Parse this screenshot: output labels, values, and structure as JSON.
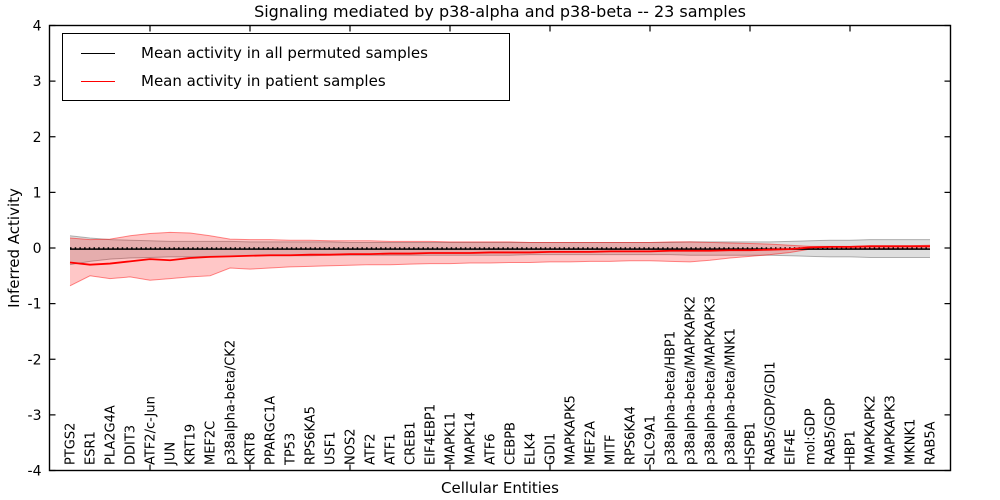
{
  "title": "Signaling mediated by p38-alpha and p38-beta -- 23 samples",
  "axes": {
    "x_label": "Cellular Entities",
    "y_label": "Inferred Activity",
    "y_tick_labels": [
      "4",
      "3",
      "2",
      "1",
      "0",
      "-1",
      "-2",
      "-3",
      "-4"
    ],
    "y_tick_values": [
      4,
      3,
      2,
      1,
      0,
      -1,
      -2,
      -3,
      -4
    ],
    "ylim": [
      -4,
      4
    ]
  },
  "legend": {
    "items": [
      {
        "label": "Mean activity in all permuted samples",
        "color": "#000000"
      },
      {
        "label": "Mean activity in patient samples",
        "color": "#ff0000"
      }
    ]
  },
  "colors": {
    "permuted_line": "#000000",
    "patient_line": "#ff0000",
    "permuted_band_fill": "rgba(0,0,0,0.13)",
    "permuted_band_edge": "rgba(0,0,0,0.28)",
    "patient_band_fill": "rgba(255,0,0,0.22)",
    "patient_band_edge": "rgba(255,0,0,0.45)",
    "spine": "#000000"
  },
  "chart_data": {
    "type": "line",
    "title": "Signaling mediated by p38-alpha and p38-beta -- 23 samples",
    "xlabel": "Cellular Entities",
    "ylabel": "Inferred Activity",
    "ylim": [
      -4,
      4
    ],
    "grid": false,
    "legend_position": "upper left",
    "categories": [
      "PTGS2",
      "ESR1",
      "PLA2G4A",
      "DDIT3",
      "ATF2/c-Jun",
      "JUN",
      "KRT19",
      "MEF2C",
      "p38alpha-beta/CK2",
      "KRT8",
      "PPARGC1A",
      "TP53",
      "RPS6KA5",
      "USF1",
      "NOS2",
      "ATF2",
      "ATF1",
      "CREB1",
      "EIF4EBP1",
      "MAPK11",
      "MAPK14",
      "ATF6",
      "CEBPB",
      "ELK4",
      "GDI1",
      "MAPKAPK5",
      "MEF2A",
      "MITF",
      "RPS6KA4",
      "SLC9A1",
      "p38alpha-beta/HBP1",
      "p38alpha-beta/MAPKAPK2",
      "p38alpha-beta/MAPKAPK3",
      "p38alpha-beta/MNK1",
      "HSPB1",
      "RAB5/GDP/GDI1",
      "EIF4E",
      "mol:GDP",
      "RAB5/GDP",
      "HBP1",
      "MAPKAPK2",
      "MAPKAPK3",
      "MKNK1",
      "RAB5A"
    ],
    "series": [
      {
        "name": "Mean activity in all permuted samples",
        "color": "#000000",
        "style": "solid",
        "values": [
          -0.02,
          -0.02,
          -0.02,
          -0.02,
          -0.02,
          -0.02,
          -0.02,
          -0.02,
          -0.02,
          -0.02,
          -0.02,
          -0.02,
          -0.02,
          -0.02,
          -0.02,
          -0.02,
          -0.02,
          -0.02,
          -0.02,
          -0.02,
          -0.02,
          -0.02,
          -0.02,
          -0.02,
          -0.02,
          -0.02,
          -0.02,
          -0.02,
          -0.02,
          -0.02,
          -0.02,
          -0.02,
          -0.02,
          -0.02,
          -0.02,
          -0.02,
          -0.02,
          -0.02,
          -0.02,
          -0.02,
          -0.02,
          -0.02,
          -0.02,
          -0.02
        ]
      },
      {
        "name": "Permuted zero reference (dotted)",
        "color": "#000000",
        "style": "dotted",
        "values": [
          0,
          0,
          0,
          0,
          0,
          0,
          0,
          0,
          0,
          0,
          0,
          0,
          0,
          0,
          0,
          0,
          0,
          0,
          0,
          0,
          0,
          0,
          0,
          0,
          0,
          0,
          0,
          0,
          0,
          0,
          0,
          0,
          0,
          0,
          0,
          0,
          0,
          0,
          0,
          0,
          0,
          0,
          0,
          0
        ]
      },
      {
        "name": "Mean activity in patient samples",
        "color": "#ff0000",
        "style": "solid",
        "values": [
          -0.26,
          -0.3,
          -0.28,
          -0.24,
          -0.2,
          -0.22,
          -0.18,
          -0.16,
          -0.15,
          -0.14,
          -0.13,
          -0.13,
          -0.12,
          -0.12,
          -0.11,
          -0.11,
          -0.1,
          -0.1,
          -0.09,
          -0.09,
          -0.09,
          -0.08,
          -0.08,
          -0.08,
          -0.07,
          -0.07,
          -0.07,
          -0.06,
          -0.06,
          -0.06,
          -0.05,
          -0.05,
          -0.05,
          -0.04,
          -0.04,
          -0.03,
          -0.02,
          0.01,
          0.02,
          0.02,
          0.03,
          0.03,
          0.03,
          0.03
        ]
      }
    ],
    "bands": [
      {
        "name": "permuted-std-band",
        "upper": [
          0.22,
          0.18,
          0.15,
          0.14,
          0.13,
          0.12,
          0.12,
          0.12,
          0.12,
          0.11,
          0.11,
          0.11,
          0.11,
          0.11,
          0.1,
          0.1,
          0.1,
          0.1,
          0.1,
          0.1,
          0.1,
          0.1,
          0.1,
          0.1,
          0.1,
          0.1,
          0.1,
          0.1,
          0.1,
          0.1,
          0.1,
          0.11,
          0.11,
          0.11,
          0.11,
          0.11,
          0.12,
          0.13,
          0.14,
          0.14,
          0.15,
          0.15,
          0.15,
          0.15
        ],
        "lower": [
          -0.3,
          -0.24,
          -0.2,
          -0.18,
          -0.17,
          -0.16,
          -0.16,
          -0.15,
          -0.15,
          -0.14,
          -0.14,
          -0.14,
          -0.14,
          -0.13,
          -0.13,
          -0.13,
          -0.13,
          -0.13,
          -0.13,
          -0.13,
          -0.13,
          -0.13,
          -0.13,
          -0.12,
          -0.12,
          -0.12,
          -0.12,
          -0.12,
          -0.12,
          -0.12,
          -0.12,
          -0.13,
          -0.13,
          -0.13,
          -0.13,
          -0.13,
          -0.14,
          -0.15,
          -0.16,
          -0.16,
          -0.17,
          -0.17,
          -0.17,
          -0.17
        ]
      },
      {
        "name": "patient-std-band",
        "upper": [
          0.18,
          0.15,
          0.16,
          0.22,
          0.26,
          0.28,
          0.27,
          0.22,
          0.16,
          0.15,
          0.15,
          0.14,
          0.14,
          0.13,
          0.13,
          0.13,
          0.12,
          0.12,
          0.12,
          0.11,
          0.11,
          0.11,
          0.11,
          0.1,
          0.1,
          0.1,
          0.1,
          0.1,
          0.1,
          0.1,
          0.11,
          0.11,
          0.1,
          0.09,
          0.08,
          0.07,
          0.05,
          0.03,
          0.03,
          0.03,
          0.04,
          0.04,
          0.04,
          0.05
        ],
        "lower": [
          -0.68,
          -0.5,
          -0.55,
          -0.52,
          -0.58,
          -0.55,
          -0.52,
          -0.5,
          -0.36,
          -0.38,
          -0.36,
          -0.34,
          -0.33,
          -0.32,
          -0.31,
          -0.3,
          -0.3,
          -0.29,
          -0.28,
          -0.28,
          -0.27,
          -0.27,
          -0.26,
          -0.26,
          -0.25,
          -0.25,
          -0.24,
          -0.24,
          -0.23,
          -0.23,
          -0.24,
          -0.25,
          -0.22,
          -0.18,
          -0.15,
          -0.12,
          -0.08,
          -0.02,
          -0.02,
          -0.01,
          -0.01,
          -0.01,
          -0.01,
          -0.02
        ]
      }
    ]
  }
}
